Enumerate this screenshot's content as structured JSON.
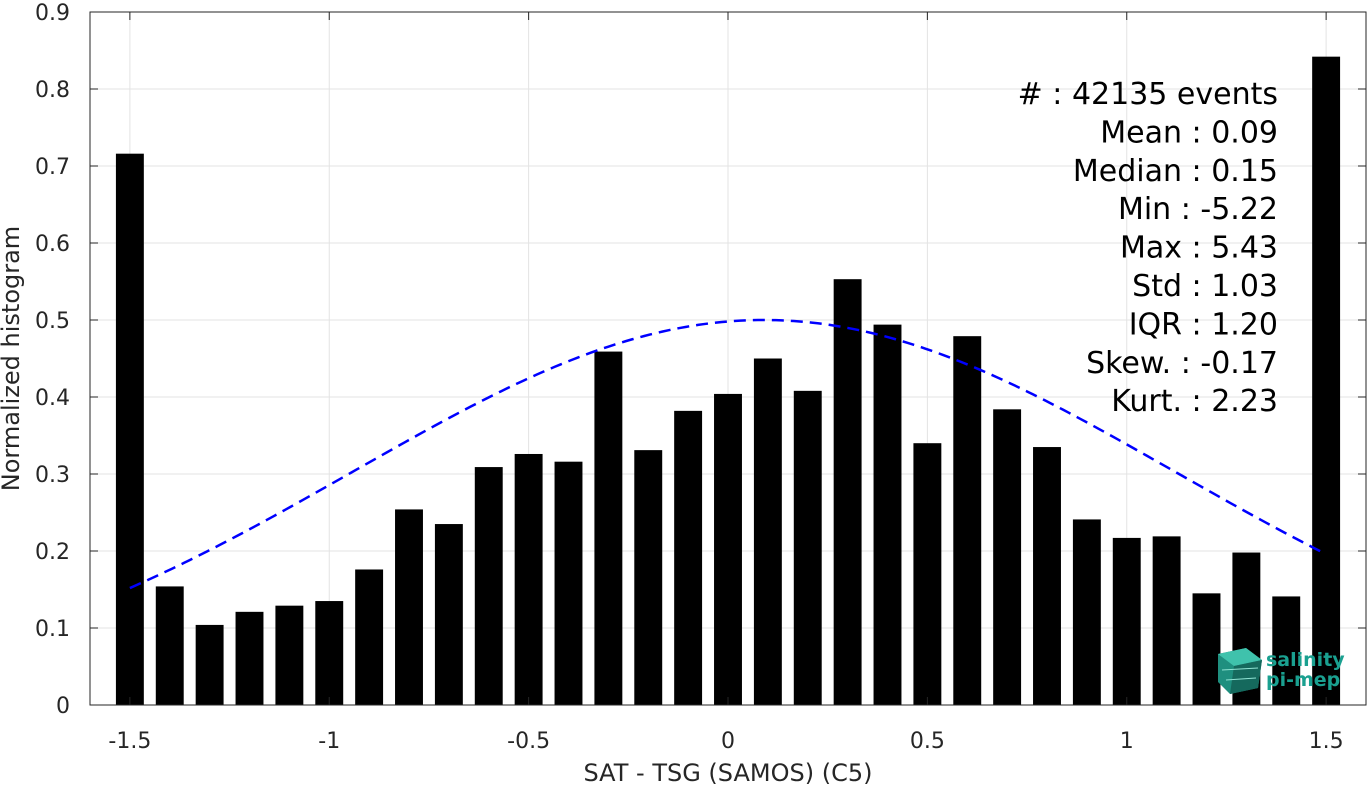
{
  "chart_data": {
    "type": "bar",
    "xlabel": "SAT - TSG (SAMOS) (C5)",
    "ylabel": "Normalized histogram",
    "xlim": [
      -1.6,
      1.6
    ],
    "ylim": [
      0,
      0.9
    ],
    "xticks": [
      -1.5,
      -1,
      -0.5,
      0,
      0.5,
      1,
      1.5
    ],
    "xtick_labels": [
      "-1.5",
      "-1",
      "-0.5",
      "0",
      "0.5",
      "1",
      "1.5"
    ],
    "yticks": [
      0,
      0.1,
      0.2,
      0.3,
      0.4,
      0.5,
      0.6,
      0.7,
      0.8,
      0.9
    ],
    "ytick_labels": [
      "0",
      "0.1",
      "0.2",
      "0.3",
      "0.4",
      "0.5",
      "0.6",
      "0.7",
      "0.8",
      "0.9"
    ],
    "grid": true,
    "bar_width": 0.07,
    "bar_color": "#000000",
    "x": [
      -1.5,
      -1.4,
      -1.3,
      -1.2,
      -1.1,
      -1.0,
      -0.9,
      -0.8,
      -0.7,
      -0.6,
      -0.5,
      -0.4,
      -0.3,
      -0.2,
      -0.1,
      0.0,
      0.1,
      0.2,
      0.3,
      0.4,
      0.5,
      0.6,
      0.7,
      0.8,
      0.9,
      1.0,
      1.1,
      1.2,
      1.3,
      1.4,
      1.5
    ],
    "values": [
      0.716,
      0.154,
      0.104,
      0.121,
      0.129,
      0.135,
      0.176,
      0.254,
      0.235,
      0.309,
      0.326,
      0.316,
      0.459,
      0.331,
      0.382,
      0.404,
      0.45,
      0.408,
      0.553,
      0.494,
      0.34,
      0.479,
      0.384,
      0.335,
      0.241,
      0.217,
      0.219,
      0.145,
      0.198,
      0.141,
      0.842
    ],
    "fit_curve": {
      "type": "gaussian",
      "mean": 0.09,
      "std": 1.03,
      "peak": 0.5,
      "x_range": [
        -1.5,
        1.5
      ],
      "color": "#0000ff",
      "style": "dashed"
    },
    "annotations": [
      "#  : 42135 events",
      "Mean : 0.09",
      "Median : 0.15",
      "Min : -5.22",
      "Max : 5.43",
      "Std : 1.03",
      "IQR : 1.20",
      "Skew. : -0.17",
      "Kurt. : 2.23"
    ]
  },
  "logo": {
    "line1": "salinity",
    "line2": "pi-mep",
    "color": "#1aa090"
  }
}
